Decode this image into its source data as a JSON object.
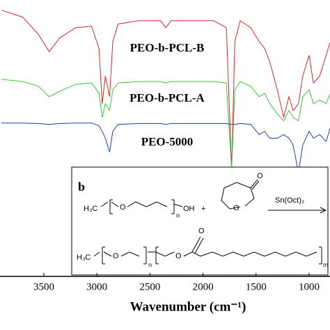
{
  "chart_data": {
    "type": "line",
    "x_label": "Wavenumber (cm⁻¹)",
    "xlim": [
      3913,
      803
    ],
    "ylim": [
      0,
      100
    ],
    "xticks": [
      3500,
      3000,
      2500,
      2000,
      1500,
      1000
    ],
    "x": [
      3900,
      3700,
      3550,
      3450,
      3350,
      3200,
      3050,
      2980,
      2950,
      2920,
      2880,
      2850,
      2800,
      2600,
      2400,
      2350,
      2300,
      2100,
      1900,
      1780,
      1730,
      1700,
      1650,
      1550,
      1470,
      1420,
      1370,
      1300,
      1240,
      1190,
      1150,
      1100,
      1060,
      1000,
      960,
      900,
      840,
      800
    ],
    "series": [
      {
        "name": "PEO-b-PCL-B",
        "color": "#d62728",
        "values": [
          96.3,
          93.8,
          87.5,
          81.3,
          86.3,
          90,
          90.5,
          82.5,
          62.5,
          72.5,
          65,
          85,
          91.3,
          92.5,
          92.5,
          90,
          92.5,
          92.5,
          92.5,
          90,
          38.8,
          85,
          92.5,
          90,
          85,
          82.5,
          77.5,
          67.5,
          57.5,
          65,
          60,
          62.5,
          72.5,
          80,
          70,
          72.5,
          80,
          85
        ]
      },
      {
        "name": "PEO-b-PCL-A",
        "color": "#3cc43c",
        "values": [
          71.3,
          70.5,
          68.8,
          65,
          67,
          69.5,
          70,
          66.3,
          57.5,
          62.5,
          60,
          67.5,
          70,
          70.5,
          70.5,
          70,
          70.5,
          70.5,
          70.5,
          70,
          38.8,
          67.5,
          70.5,
          68.8,
          65,
          66.3,
          62.5,
          58.8,
          56.3,
          60,
          57.5,
          56.3,
          65,
          67.5,
          62.5,
          63.8,
          62.5,
          66.3
        ]
      },
      {
        "name": "PEO-5000",
        "color": "#1f3fa0",
        "values": [
          55.5,
          55.5,
          55.3,
          55,
          55.3,
          55.5,
          55.5,
          54.5,
          52.5,
          50,
          45,
          52.5,
          55,
          55.3,
          55.3,
          55,
          55.3,
          55.3,
          55.3,
          55.3,
          55,
          55,
          55.3,
          55,
          51.3,
          52.5,
          50,
          50,
          51.3,
          50,
          47.5,
          37.5,
          47.5,
          52.5,
          50,
          51.3,
          48.8,
          53.8
        ]
      }
    ]
  },
  "scheme": {
    "panel": "b",
    "methyl_1": "H₃C",
    "ether_o_1": "O",
    "n_1": "n",
    "hydroxyl": "OH",
    "plus": "+",
    "ring_o": "O",
    "carbonyl_o_1": "O",
    "catalyst": "Sn(Oct)₂",
    "methyl_2": "H₃C",
    "ether_o_2": "O",
    "n_2": "n",
    "ester_o": "O",
    "carbonyl_o_2": "O",
    "m": "m"
  }
}
